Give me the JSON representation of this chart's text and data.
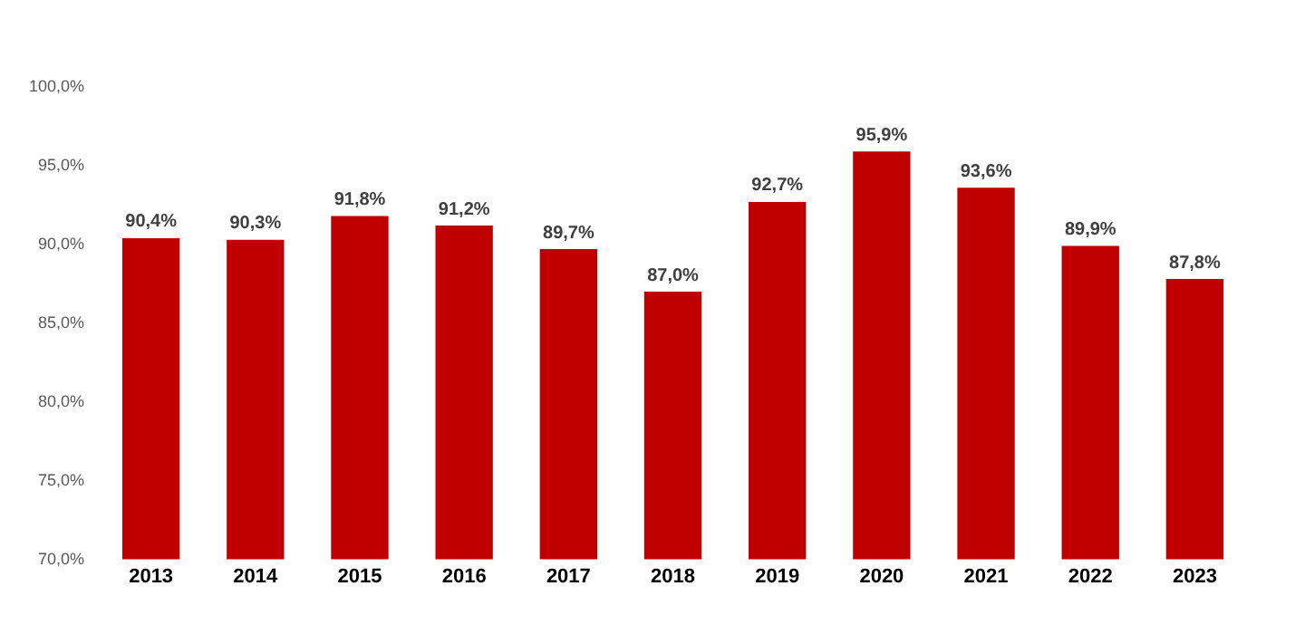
{
  "chart_data": {
    "type": "bar",
    "categories": [
      "2013",
      "2014",
      "2015",
      "2016",
      "2017",
      "2018",
      "2019",
      "2020",
      "2021",
      "2022",
      "2023"
    ],
    "values": [
      90.4,
      90.3,
      91.8,
      91.2,
      89.7,
      87.0,
      92.7,
      95.9,
      93.6,
      89.9,
      87.8
    ],
    "value_labels": [
      "90,4%",
      "90,3%",
      "91,8%",
      "91,2%",
      "89,7%",
      "87,0%",
      "92,7%",
      "95,9%",
      "93,6%",
      "89,9%",
      "87,8%"
    ],
    "color": "#c00000",
    "ylim": [
      70,
      100
    ],
    "yticks": [
      {
        "value": 70,
        "label": "70,0%"
      },
      {
        "value": 75,
        "label": "75,0%"
      },
      {
        "value": 80,
        "label": "80,0%"
      },
      {
        "value": 85,
        "label": "85,0%"
      },
      {
        "value": 90,
        "label": "90,0%"
      },
      {
        "value": 95,
        "label": "95,0%"
      },
      {
        "value": 100,
        "label": "100,0%"
      }
    ],
    "grid": false,
    "legend": false
  }
}
